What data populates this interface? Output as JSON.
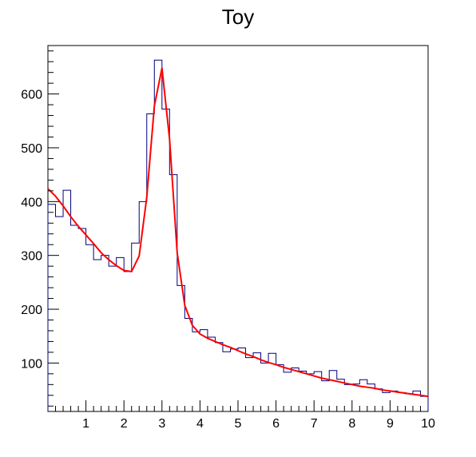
{
  "chart_data": {
    "type": "line",
    "title": "Toy",
    "xlabel": "",
    "ylabel": "",
    "xlim": [
      0,
      10
    ],
    "ylim": [
      10,
      690
    ],
    "grid": false,
    "legend": "none",
    "colors": {
      "histogram": "#000080",
      "fit": "#ff0000",
      "axes": "#000000"
    },
    "x_ticks": [
      "1",
      "2",
      "3",
      "4",
      "5",
      "6",
      "7",
      "8",
      "9",
      "10"
    ],
    "x_tick_values": [
      1,
      2,
      3,
      4,
      5,
      6,
      7,
      8,
      9,
      10
    ],
    "y_ticks": [
      "100",
      "200",
      "300",
      "400",
      "500",
      "600"
    ],
    "y_tick_values": [
      100,
      200,
      300,
      400,
      500,
      600
    ],
    "series": [
      {
        "kind": "histogram",
        "bin_width": 0.2,
        "x": [
          0.1,
          0.3,
          0.5,
          0.7,
          0.9,
          1.1,
          1.3,
          1.5,
          1.7,
          1.9,
          2.1,
          2.3,
          2.5,
          2.7,
          2.9,
          3.1,
          3.3,
          3.5,
          3.7,
          3.9,
          4.1,
          4.3,
          4.5,
          4.7,
          4.9,
          5.1,
          5.3,
          5.5,
          5.7,
          5.9,
          6.1,
          6.3,
          6.5,
          6.7,
          6.9,
          7.1,
          7.3,
          7.5,
          7.7,
          7.9,
          8.1,
          8.3,
          8.5,
          8.7,
          8.9,
          9.1,
          9.3,
          9.5,
          9.7,
          9.9
        ],
        "values": [
          395,
          372,
          421,
          356,
          350,
          320,
          292,
          300,
          280,
          296,
          270,
          323,
          400,
          563,
          663,
          572,
          450,
          244,
          183,
          158,
          162,
          148,
          138,
          121,
          126,
          128,
          110,
          119,
          100,
          118,
          97,
          83,
          91,
          85,
          80,
          84,
          67,
          86,
          70,
          60,
          61,
          69,
          61,
          52,
          45,
          48,
          45,
          43,
          48,
          38
        ]
      },
      {
        "kind": "fit",
        "x": [
          0,
          0.2,
          0.4,
          0.6,
          0.8,
          1.0,
          1.2,
          1.4,
          1.6,
          1.8,
          2.0,
          2.2,
          2.4,
          2.6,
          2.8,
          3.0,
          3.2,
          3.4,
          3.6,
          3.8,
          4.0,
          4.2,
          4.4,
          4.6,
          4.8,
          5.0,
          5.2,
          5.4,
          5.6,
          5.8,
          6.0,
          6.2,
          6.4,
          6.6,
          6.8,
          7.0,
          7.2,
          7.4,
          7.6,
          7.8,
          8.0,
          8.2,
          8.4,
          8.6,
          8.8,
          9.0,
          9.2,
          9.4,
          9.6,
          9.8,
          10.0
        ],
        "values": [
          424,
          410,
          392,
          372,
          354,
          338,
          322,
          305,
          292,
          281,
          272,
          270,
          299,
          408,
          578,
          648,
          516,
          305,
          207,
          170,
          154,
          146,
          140,
          134,
          129,
          123,
          117,
          112,
          106,
          101,
          97,
          92,
          88,
          84,
          80,
          76,
          72,
          69,
          66,
          63,
          60,
          57,
          55,
          53,
          50,
          48,
          46,
          44,
          42,
          40,
          38
        ]
      }
    ]
  }
}
